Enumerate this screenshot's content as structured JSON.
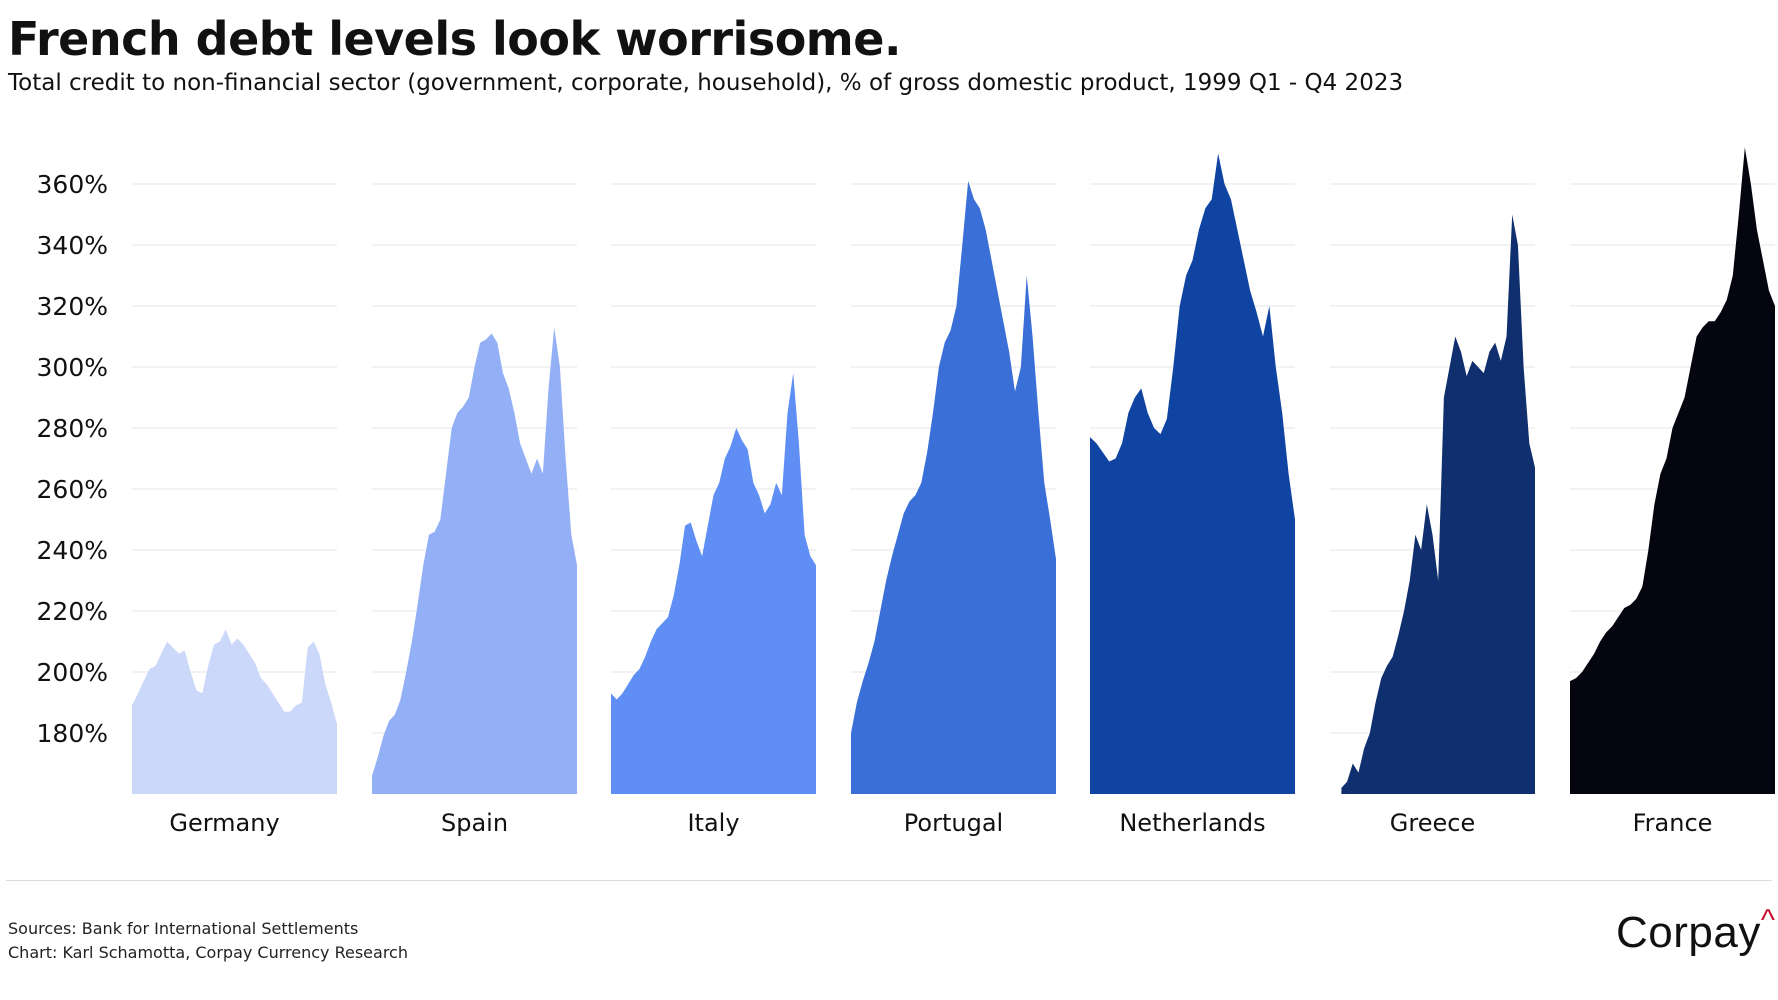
{
  "title": "French debt levels look worrisome.",
  "subtitle": "Total credit to non-financial sector (government, corporate, household), % of gross domestic product, 1999 Q1 - Q4 2023",
  "footer": {
    "sources": "Sources: Bank for International Settlements",
    "chart_credit": "Chart: Karl Schamotta, Corpay Currency Research",
    "logo_text": "Corpay",
    "logo_mark": "^"
  },
  "chart_data": {
    "type": "area",
    "title": "French debt levels look worrisome.",
    "ylabel": "% of GDP",
    "ylim": [
      160,
      375
    ],
    "yticks": [
      180,
      200,
      220,
      240,
      260,
      280,
      300,
      320,
      340,
      360
    ],
    "ytick_labels": [
      "180%",
      "200%",
      "220%",
      "240%",
      "260%",
      "280%",
      "300%",
      "320%",
      "340%",
      "360%"
    ],
    "grid": true,
    "x_range": "1999 Q1 - 2023 Q4",
    "series": [
      {
        "name": "Germany",
        "color": "#cbd8fa",
        "values": [
          189,
          193,
          197,
          201,
          202,
          206,
          210,
          208,
          206,
          207,
          200,
          194,
          193,
          202,
          209,
          210,
          214,
          209,
          211,
          209,
          206,
          203,
          198,
          196,
          193,
          190,
          187,
          187,
          189,
          190,
          208,
          210,
          206,
          196,
          190,
          183
        ]
      },
      {
        "name": "Spain",
        "color": "#93b0f7",
        "values": [
          166,
          172,
          179,
          184,
          186,
          191,
          200,
          210,
          222,
          235,
          245,
          246,
          250,
          265,
          280,
          285,
          287,
          290,
          300,
          308,
          309,
          311,
          308,
          298,
          293,
          285,
          275,
          270,
          265,
          270,
          265,
          293,
          313,
          300,
          270,
          245,
          235
        ]
      },
      {
        "name": "Italy",
        "color": "#5f8ef5",
        "values": [
          193,
          191,
          193,
          196,
          199,
          201,
          205,
          210,
          214,
          216,
          218,
          225,
          235,
          248,
          249,
          243,
          238,
          248,
          258,
          262,
          270,
          274,
          280,
          276,
          273,
          262,
          258,
          252,
          255,
          262,
          258,
          285,
          298,
          275,
          245,
          238,
          235
        ]
      },
      {
        "name": "Portugal",
        "color": "#3a6fd8",
        "values": [
          180,
          190,
          197,
          203,
          210,
          220,
          230,
          238,
          245,
          252,
          256,
          258,
          262,
          272,
          285,
          300,
          308,
          312,
          320,
          340,
          361,
          355,
          352,
          345,
          335,
          325,
          315,
          305,
          292,
          300,
          330,
          310,
          285,
          262,
          250,
          237
        ]
      },
      {
        "name": "Netherlands",
        "color": "#1044a3",
        "values": [
          277,
          275,
          272,
          269,
          270,
          275,
          285,
          290,
          293,
          285,
          280,
          278,
          283,
          300,
          320,
          330,
          335,
          345,
          352,
          355,
          370,
          360,
          355,
          345,
          335,
          325,
          318,
          310,
          320,
          300,
          285,
          265,
          250
        ]
      },
      {
        "name": "Greece",
        "color": "#0f2f6e",
        "values": [
          null,
          null,
          162,
          164,
          170,
          167,
          175,
          180,
          190,
          198,
          202,
          205,
          212,
          220,
          230,
          245,
          240,
          255,
          245,
          230,
          290,
          300,
          310,
          305,
          297,
          302,
          300,
          298,
          305,
          308,
          302,
          310,
          350,
          340,
          300,
          275,
          267
        ]
      },
      {
        "name": "France",
        "color": "#05050f",
        "values": [
          197,
          198,
          200,
          203,
          206,
          210,
          213,
          215,
          218,
          221,
          222,
          224,
          228,
          240,
          255,
          265,
          270,
          280,
          285,
          290,
          300,
          310,
          313,
          315,
          315,
          318,
          322,
          330,
          350,
          372,
          360,
          345,
          335,
          325,
          320
        ]
      }
    ]
  }
}
